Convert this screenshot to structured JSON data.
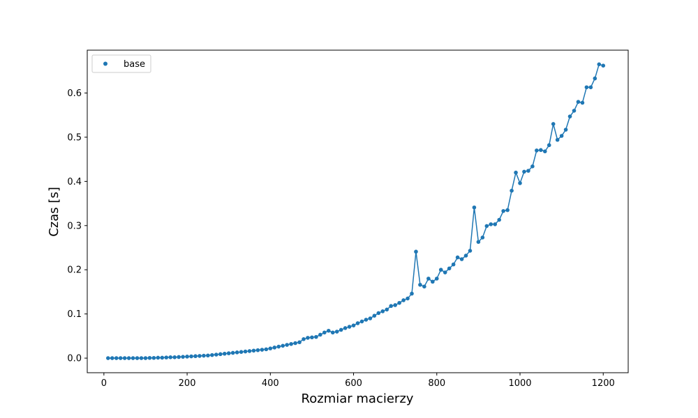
{
  "chart_data": {
    "type": "line",
    "title": "",
    "xlabel": "Rozmiar macierzy",
    "ylabel": "Czas [s]",
    "xlim": [
      -40,
      1260
    ],
    "ylim": [
      -0.033,
      0.697
    ],
    "x_ticks": [
      0,
      200,
      400,
      600,
      800,
      1000,
      1200
    ],
    "y_ticks": [
      0.0,
      0.1,
      0.2,
      0.3,
      0.4,
      0.5,
      0.6
    ],
    "x_tick_labels": [
      "0",
      "200",
      "400",
      "600",
      "800",
      "1000",
      "1200"
    ],
    "y_tick_labels": [
      "0.0",
      "0.1",
      "0.2",
      "0.3",
      "0.4",
      "0.5",
      "0.6"
    ],
    "grid": false,
    "legend_position": "upper-left",
    "series_color": "#1f77b4",
    "series": [
      {
        "name": "base",
        "x": [
          10,
          20,
          30,
          40,
          50,
          60,
          70,
          80,
          90,
          100,
          110,
          120,
          130,
          140,
          150,
          160,
          170,
          180,
          190,
          200,
          210,
          220,
          230,
          240,
          250,
          260,
          270,
          280,
          290,
          300,
          310,
          320,
          330,
          340,
          350,
          360,
          370,
          380,
          390,
          400,
          410,
          420,
          430,
          440,
          450,
          460,
          470,
          480,
          490,
          500,
          510,
          520,
          530,
          540,
          550,
          560,
          570,
          580,
          590,
          600,
          610,
          620,
          630,
          640,
          650,
          660,
          670,
          680,
          690,
          700,
          710,
          720,
          730,
          740,
          750,
          760,
          770,
          780,
          790,
          800,
          810,
          820,
          830,
          840,
          850,
          860,
          870,
          880,
          890,
          900,
          910,
          920,
          930,
          940,
          950,
          960,
          970,
          980,
          990,
          1000,
          1010,
          1020,
          1030,
          1040,
          1050,
          1060,
          1070,
          1080,
          1090,
          1100,
          1110,
          1120,
          1130,
          1140,
          1150,
          1160,
          1170,
          1180,
          1190,
          1200
        ],
        "values": [
          0.0,
          0.0,
          0.0,
          0.0,
          0.0,
          0.0,
          0.0,
          0.0,
          0.0,
          0.0,
          0.0005,
          0.0005,
          0.001,
          0.001,
          0.0015,
          0.002,
          0.002,
          0.0025,
          0.003,
          0.0035,
          0.004,
          0.0045,
          0.005,
          0.0055,
          0.006,
          0.007,
          0.008,
          0.009,
          0.01,
          0.011,
          0.012,
          0.013,
          0.014,
          0.015,
          0.016,
          0.017,
          0.018,
          0.019,
          0.02,
          0.022,
          0.024,
          0.026,
          0.028,
          0.03,
          0.032,
          0.034,
          0.036,
          0.043,
          0.046,
          0.047,
          0.048,
          0.053,
          0.058,
          0.062,
          0.058,
          0.06,
          0.064,
          0.068,
          0.071,
          0.074,
          0.079,
          0.083,
          0.087,
          0.09,
          0.096,
          0.102,
          0.106,
          0.11,
          0.118,
          0.12,
          0.125,
          0.131,
          0.135,
          0.146,
          0.241,
          0.166,
          0.162,
          0.18,
          0.173,
          0.18,
          0.2,
          0.194,
          0.203,
          0.212,
          0.228,
          0.224,
          0.232,
          0.243,
          0.341,
          0.263,
          0.273,
          0.299,
          0.303,
          0.303,
          0.313,
          0.333,
          0.335,
          0.379,
          0.42,
          0.396,
          0.422,
          0.424,
          0.434,
          0.47,
          0.471,
          0.468,
          0.482,
          0.53,
          0.494,
          0.503,
          0.517,
          0.547,
          0.56,
          0.58,
          0.578,
          0.613,
          0.613,
          0.633,
          0.665,
          0.662
        ]
      }
    ]
  }
}
